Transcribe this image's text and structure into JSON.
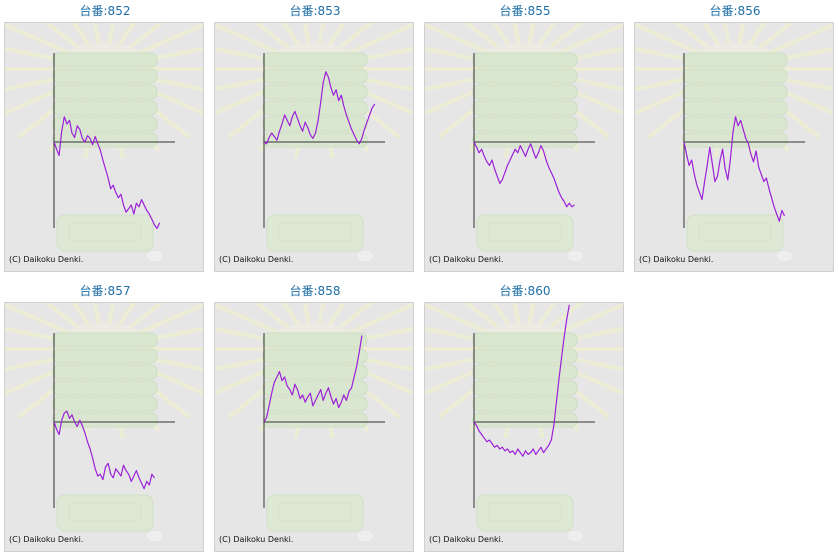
{
  "colors": {
    "line": "#9b20d8",
    "title": "#1f6fa8",
    "axis": "#333333",
    "panel": "#e6e6e6"
  },
  "chart_data": [
    {
      "type": "line",
      "title": "台番:852",
      "credit": "(C) Daikoku Denki.",
      "y": [
        0,
        -8,
        -15,
        12,
        28,
        20,
        24,
        10,
        5,
        18,
        14,
        4,
        0,
        7,
        4,
        -3,
        6,
        -2,
        -9,
        -20,
        -30,
        -40,
        -52,
        -48,
        -56,
        -62,
        -58,
        -70,
        -78,
        -74,
        -70,
        -80,
        -68,
        -72,
        -64,
        -70,
        -76,
        -80,
        -86,
        -92,
        -96,
        -90
      ]
    },
    {
      "type": "line",
      "title": "台番:853",
      "credit": "(C) Daikoku Denki.",
      "y": [
        0,
        -2,
        5,
        10,
        6,
        2,
        12,
        20,
        30,
        24,
        18,
        28,
        34,
        26,
        18,
        12,
        22,
        16,
        8,
        4,
        10,
        24,
        44,
        66,
        78,
        72,
        60,
        52,
        58,
        46,
        52,
        40,
        30,
        22,
        14,
        8,
        2,
        -2,
        4,
        14,
        22,
        30,
        38,
        42
      ]
    },
    {
      "type": "line",
      "title": "台番:855",
      "credit": "(C) Daikoku Denki.",
      "y": [
        0,
        -6,
        -12,
        -8,
        -16,
        -22,
        -26,
        -20,
        -30,
        -38,
        -46,
        -42,
        -34,
        -26,
        -20,
        -14,
        -8,
        -12,
        -4,
        -10,
        -16,
        -8,
        -2,
        -10,
        -18,
        -12,
        -4,
        -10,
        -20,
        -28,
        -34,
        -40,
        -48,
        -56,
        -62,
        -66,
        -72,
        -68,
        -72,
        -70
      ]
    },
    {
      "type": "line",
      "title": "台番:856",
      "credit": "(C) Daikoku Denki.",
      "y": [
        0,
        -14,
        -26,
        -20,
        -36,
        -48,
        -56,
        -64,
        -44,
        -26,
        -6,
        -24,
        -44,
        -38,
        -20,
        -8,
        -30,
        -42,
        -20,
        10,
        28,
        18,
        24,
        14,
        4,
        -2,
        -14,
        -22,
        -10,
        -28,
        -36,
        -44,
        -40,
        -52,
        -62,
        -72,
        -80,
        -88,
        -76,
        -82
      ]
    },
    {
      "type": "line",
      "title": "台番:857",
      "credit": "(C) Daikoku Denki.",
      "y": [
        0,
        -8,
        -14,
        2,
        10,
        12,
        4,
        8,
        0,
        -5,
        2,
        -4,
        -12,
        -22,
        -30,
        -40,
        -52,
        -60,
        -58,
        -64,
        -50,
        -46,
        -58,
        -62,
        -52,
        -56,
        -60,
        -48,
        -54,
        -58,
        -66,
        -60,
        -54,
        -62,
        -68,
        -74,
        -66,
        -70,
        -58,
        -62
      ]
    },
    {
      "type": "line",
      "title": "台番:858",
      "credit": "(C) Daikoku Denki.",
      "y": [
        0,
        5,
        18,
        32,
        44,
        50,
        56,
        46,
        50,
        40,
        36,
        30,
        42,
        36,
        26,
        30,
        22,
        28,
        32,
        18,
        24,
        30,
        36,
        24,
        32,
        38,
        28,
        20,
        26,
        16,
        22,
        30,
        24,
        34,
        38,
        50,
        62,
        78,
        96
      ]
    },
    {
      "type": "line",
      "title": "台番:860",
      "credit": "(C) Daikoku Denki.",
      "y": [
        0,
        -4,
        -10,
        -14,
        -18,
        -22,
        -20,
        -24,
        -28,
        -26,
        -30,
        -28,
        -32,
        -30,
        -34,
        -32,
        -36,
        -30,
        -34,
        -38,
        -32,
        -36,
        -34,
        -30,
        -36,
        -32,
        -28,
        -34,
        -30,
        -26,
        -20,
        -4,
        22,
        48,
        72,
        94,
        114,
        130
      ]
    }
  ]
}
